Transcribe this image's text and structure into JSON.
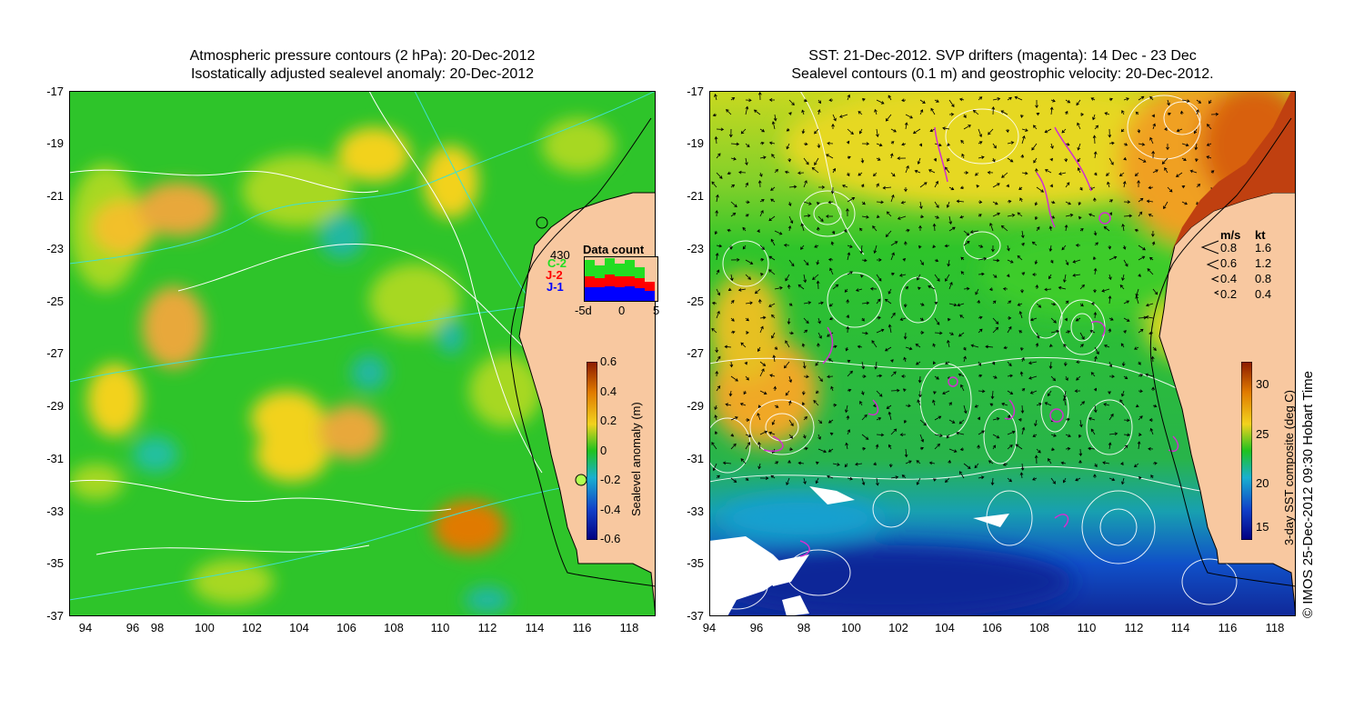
{
  "left": {
    "title_line1": "Atmospheric pressure contours (2 hPa): 20-Dec-2012",
    "title_line2": "Isostatically adjusted sealevel anomaly: 20-Dec-2012",
    "colorbar": {
      "label": "Sealevel anomaly (m)",
      "ticks": [
        "0.6",
        "0.4",
        "0.2",
        "0",
        "-0.2",
        "-0.4",
        "-0.6"
      ],
      "colors": [
        "#8b1a00",
        "#e07a00",
        "#f2d21e",
        "#1fc21f",
        "#19b0d0",
        "#1040c8",
        "#000080"
      ]
    },
    "inset": {
      "title": "Data count",
      "max_label": "430",
      "series_labels": [
        "C-2",
        "J-2",
        "J-1"
      ],
      "series_colors": [
        "#22dd22",
        "#ff0000",
        "#0000ff"
      ],
      "x_ticks": [
        "-5d",
        "0",
        "5"
      ]
    }
  },
  "right": {
    "title_line1": "SST: 21-Dec-2012. SVP drifters (magenta): 14 Dec - 23 Dec",
    "title_line2": "Sealevel contours (0.1 m) and geostrophic velocity: 20-Dec-2012.",
    "colorbar": {
      "label": "3-day SST composite (deg C)",
      "ticks": [
        "30",
        "25",
        "20",
        "15"
      ],
      "colors": [
        "#8b1a00",
        "#e07a00",
        "#f2d21e",
        "#1fc21f",
        "#19b0d0",
        "#1040c8",
        "#000080"
      ]
    },
    "velocity_legend": {
      "header_ms": "m/s",
      "header_kt": "kt",
      "rows": [
        {
          "ms": "0.8",
          "kt": "1.6"
        },
        {
          "ms": "0.6",
          "kt": "1.2"
        },
        {
          "ms": "0.4",
          "kt": "0.8"
        },
        {
          "ms": "0.2",
          "kt": "0.4"
        }
      ]
    }
  },
  "axes": {
    "y_ticks": [
      "-17",
      "-19",
      "-21",
      "-23",
      "-25",
      "-27",
      "-29",
      "-31",
      "-33",
      "-35",
      "-37"
    ],
    "x_ticks": [
      "94",
      "96",
      "98",
      "100",
      "102",
      "104",
      "106",
      "108",
      "110",
      "112",
      "114",
      "116",
      "118"
    ]
  },
  "credit": "© IMOS 25-Dec-2012 09:30 Hobart Time",
  "colors": {
    "land": "#f8c8a0",
    "contour": "#ffffff",
    "isobar": "#40e0d0",
    "drifter": "#d030d0"
  }
}
